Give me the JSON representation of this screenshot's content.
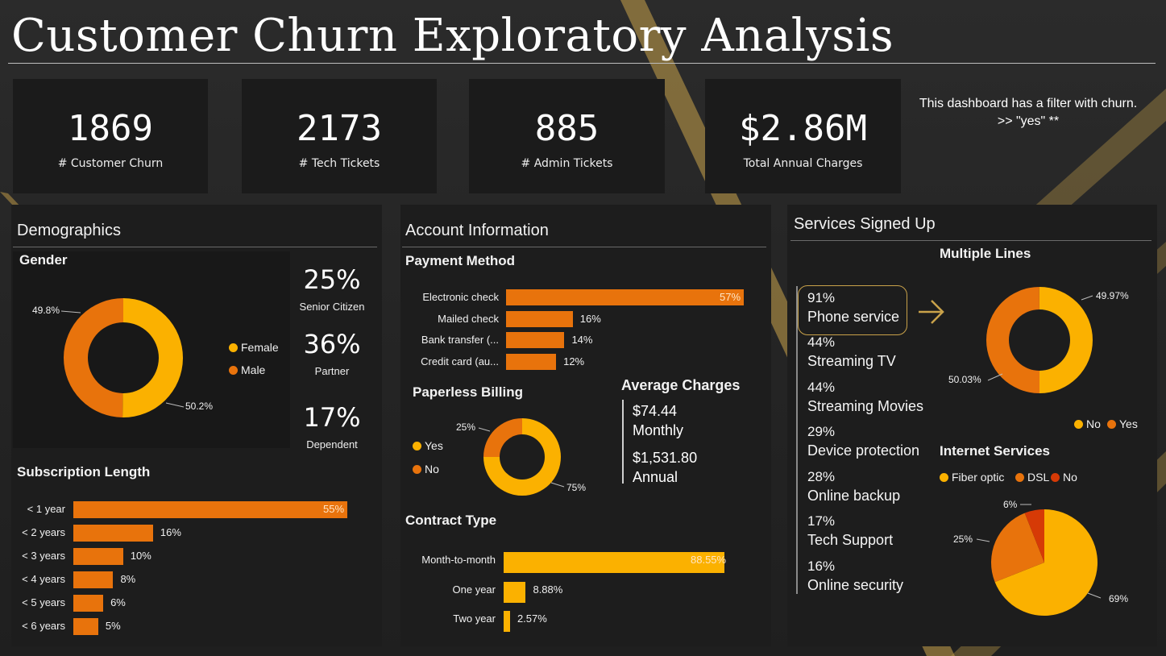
{
  "title": "Customer Churn Exploratory Analysis",
  "kpis": [
    {
      "value": "1869",
      "label": "# Customer Churn"
    },
    {
      "value": "2173",
      "label": "# Tech Tickets"
    },
    {
      "value": "885",
      "label": "# Admin Tickets"
    },
    {
      "value": "$2.86M",
      "label": "Total Annual Charges"
    }
  ],
  "note": {
    "line1": "This dashboard has a filter with churn.",
    "line2": ">> \"yes\" **"
  },
  "demographics": {
    "title": "Demographics",
    "gender": {
      "title": "Gender",
      "legend": [
        "Female",
        "Male"
      ],
      "label_male": "49.8%",
      "label_female": "50.2%"
    },
    "stats": [
      {
        "value": "25%",
        "label": "Senior Citizen"
      },
      {
        "value": "36%",
        "label": "Partner"
      },
      {
        "value": "17%",
        "label": "Dependent"
      }
    ],
    "subscription": {
      "title": "Subscription Length"
    }
  },
  "account": {
    "title": "Account Information",
    "payment": {
      "title": "Payment Method"
    },
    "paperless": {
      "title": "Paperless Billing",
      "legend": [
        "Yes",
        "No"
      ],
      "label_no": "25%",
      "label_yes": "75%"
    },
    "avg": {
      "title": "Average Charges",
      "monthly_value": "$74.44",
      "monthly_label": "Monthly",
      "annual_value": "$1,531.80",
      "annual_label": "Annual"
    },
    "contract": {
      "title": "Contract Type"
    }
  },
  "services": {
    "title": "Services Signed Up",
    "list": [
      {
        "pct": "91%",
        "name": "Phone service"
      },
      {
        "pct": "44%",
        "name": "Streaming TV"
      },
      {
        "pct": "44%",
        "name": "Streaming Movies"
      },
      {
        "pct": "29%",
        "name": "Device protection"
      },
      {
        "pct": "28%",
        "name": "Online backup"
      },
      {
        "pct": "17%",
        "name": "Tech Support"
      },
      {
        "pct": "16%",
        "name": "Online security"
      }
    ],
    "multiple_lines": {
      "title": "Multiple Lines",
      "legend": [
        "No",
        "Yes"
      ],
      "label_no": "49.97%",
      "label_yes": "50.03%"
    },
    "internet": {
      "title": "Internet Services",
      "legend": [
        "Fiber optic",
        "DSL",
        "No"
      ],
      "label_fiber": "69%",
      "label_dsl": "25%",
      "label_no": "6%"
    }
  },
  "colors": {
    "orange": "#e8730c",
    "yellow": "#fbb100",
    "red": "#d63a06",
    "gold": "#c9a24a"
  },
  "chart_data": [
    {
      "type": "pie",
      "title": "Gender",
      "categories": [
        "Female",
        "Male"
      ],
      "values": [
        50.2,
        49.8
      ]
    },
    {
      "type": "bar",
      "title": "Subscription Length",
      "categories": [
        "< 1 year",
        "< 2 years",
        "< 3 years",
        "< 4 years",
        "< 5 years",
        "< 6 years"
      ],
      "values": [
        55,
        16,
        10,
        8,
        6,
        5
      ],
      "labels": [
        "55%",
        "16%",
        "10%",
        "8%",
        "6%",
        "5%"
      ]
    },
    {
      "type": "bar",
      "title": "Payment Method",
      "categories": [
        "Electronic check",
        "Mailed check",
        "Bank transfer (...",
        "Credit card (au..."
      ],
      "values": [
        57,
        16,
        14,
        12
      ],
      "labels": [
        "57%",
        "16%",
        "14%",
        "12%"
      ]
    },
    {
      "type": "pie",
      "title": "Paperless Billing",
      "categories": [
        "Yes",
        "No"
      ],
      "values": [
        75,
        25
      ]
    },
    {
      "type": "bar",
      "title": "Contract Type",
      "categories": [
        "Month-to-month",
        "One year",
        "Two year"
      ],
      "values": [
        88.55,
        8.88,
        2.57
      ],
      "labels": [
        "88.55%",
        "8.88%",
        "2.57%"
      ]
    },
    {
      "type": "pie",
      "title": "Multiple Lines",
      "categories": [
        "No",
        "Yes"
      ],
      "values": [
        49.97,
        50.03
      ]
    },
    {
      "type": "pie",
      "title": "Internet Services",
      "categories": [
        "Fiber optic",
        "DSL",
        "No"
      ],
      "values": [
        69,
        25,
        6
      ]
    }
  ]
}
